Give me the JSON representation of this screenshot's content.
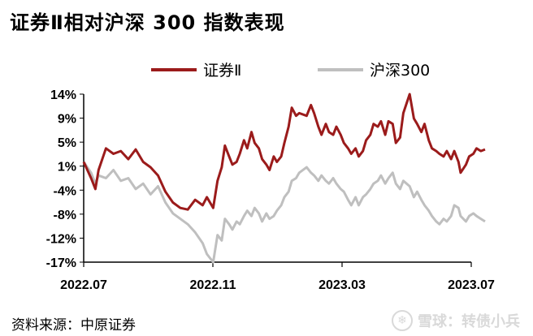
{
  "title": "证券Ⅱ相对沪深 300 指数表现",
  "source_text": "资料来源：中原证券",
  "watermark": {
    "icon": "snowball-logo-icon",
    "text": "雪球：转债小兵"
  },
  "chart_data": {
    "type": "line",
    "title": "证券Ⅱ相对沪深 300 指数表现",
    "xlabel": "",
    "ylabel": "",
    "x_ticks": [
      "2022.07",
      "2022.11",
      "2023.03",
      "2023.07"
    ],
    "y_ticks": [
      "14%",
      "9%",
      "5%",
      "1%",
      "-4%",
      "-8%",
      "-12%",
      "-17%"
    ],
    "ylim": [
      -17,
      14
    ],
    "xlim": [
      "2022-07",
      "2023-07"
    ],
    "grid": false,
    "legend_position": "top",
    "series": [
      {
        "name": "证券Ⅱ",
        "color": "#9b1b1b",
        "points": [
          [
            "2022-07-01",
            1.5
          ],
          [
            "2022-07-08",
            -1.5
          ],
          [
            "2022-07-12",
            -3.5
          ],
          [
            "2022-07-15",
            0.0
          ],
          [
            "2022-07-22",
            4.0
          ],
          [
            "2022-07-29",
            3.0
          ],
          [
            "2022-08-05",
            3.5
          ],
          [
            "2022-08-12",
            2.0
          ],
          [
            "2022-08-19",
            3.8
          ],
          [
            "2022-08-26",
            1.5
          ],
          [
            "2022-09-02",
            0.5
          ],
          [
            "2022-09-09",
            -1.0
          ],
          [
            "2022-09-16",
            -4.0
          ],
          [
            "2022-09-23",
            -6.0
          ],
          [
            "2022-09-30",
            -7.0
          ],
          [
            "2022-10-07",
            -7.3
          ],
          [
            "2022-10-14",
            -5.5
          ],
          [
            "2022-10-21",
            -6.5
          ],
          [
            "2022-10-25",
            -5.0
          ],
          [
            "2022-10-31",
            -7.0
          ],
          [
            "2022-11-04",
            -2.0
          ],
          [
            "2022-11-08",
            0.5
          ],
          [
            "2022-11-11",
            4.5
          ],
          [
            "2022-11-15",
            2.5
          ],
          [
            "2022-11-18",
            1.0
          ],
          [
            "2022-11-22",
            1.5
          ],
          [
            "2022-11-25",
            3.0
          ],
          [
            "2022-11-29",
            5.5
          ],
          [
            "2022-12-02",
            4.0
          ],
          [
            "2022-12-06",
            7.0
          ],
          [
            "2022-12-09",
            5.0
          ],
          [
            "2022-12-13",
            4.0
          ],
          [
            "2022-12-16",
            2.0
          ],
          [
            "2022-12-20",
            1.0
          ],
          [
            "2022-12-23",
            0.0
          ],
          [
            "2022-12-27",
            2.5
          ],
          [
            "2022-12-30",
            1.5
          ],
          [
            "2023-01-03",
            2.5
          ],
          [
            "2023-01-06",
            5.0
          ],
          [
            "2023-01-10",
            8.0
          ],
          [
            "2023-01-13",
            11.5
          ],
          [
            "2023-01-17",
            10.0
          ],
          [
            "2023-01-20",
            10.5
          ],
          [
            "2023-01-27",
            10.0
          ],
          [
            "2023-01-31",
            12.0
          ],
          [
            "2023-02-03",
            10.5
          ],
          [
            "2023-02-07",
            8.0
          ],
          [
            "2023-02-10",
            6.5
          ],
          [
            "2023-02-14",
            8.5
          ],
          [
            "2023-02-17",
            7.0
          ],
          [
            "2023-02-21",
            6.5
          ],
          [
            "2023-02-24",
            8.0
          ],
          [
            "2023-02-28",
            6.5
          ],
          [
            "2023-03-03",
            5.0
          ],
          [
            "2023-03-07",
            4.0
          ],
          [
            "2023-03-10",
            3.0
          ],
          [
            "2023-03-14",
            4.0
          ],
          [
            "2023-03-17",
            2.5
          ],
          [
            "2023-03-21",
            3.5
          ],
          [
            "2023-03-24",
            5.5
          ],
          [
            "2023-03-28",
            6.5
          ],
          [
            "2023-03-31",
            8.5
          ],
          [
            "2023-04-04",
            8.0
          ],
          [
            "2023-04-07",
            9.0
          ],
          [
            "2023-04-11",
            6.5
          ],
          [
            "2023-04-14",
            9.0
          ],
          [
            "2023-04-18",
            8.5
          ],
          [
            "2023-04-21",
            5.0
          ],
          [
            "2023-04-25",
            6.0
          ],
          [
            "2023-04-28",
            10.5
          ],
          [
            "2023-05-04",
            14.0
          ],
          [
            "2023-05-08",
            9.5
          ],
          [
            "2023-05-11",
            8.5
          ],
          [
            "2023-05-15",
            7.0
          ],
          [
            "2023-05-18",
            8.5
          ],
          [
            "2023-05-22",
            5.5
          ],
          [
            "2023-05-25",
            4.0
          ],
          [
            "2023-05-29",
            3.5
          ],
          [
            "2023-06-01",
            3.0
          ],
          [
            "2023-06-05",
            2.5
          ],
          [
            "2023-06-08",
            3.5
          ],
          [
            "2023-06-12",
            2.0
          ],
          [
            "2023-06-15",
            3.5
          ],
          [
            "2023-06-19",
            1.5
          ],
          [
            "2023-06-21",
            -0.5
          ],
          [
            "2023-06-26",
            1.0
          ],
          [
            "2023-06-29",
            2.5
          ],
          [
            "2023-07-03",
            3.0
          ],
          [
            "2023-07-06",
            4.0
          ],
          [
            "2023-07-10",
            3.5
          ],
          [
            "2023-07-14",
            3.8
          ]
        ]
      },
      {
        "name": "沪深300",
        "color": "#bfbfbf",
        "points": [
          [
            "2022-07-01",
            1.5
          ],
          [
            "2022-07-08",
            -0.5
          ],
          [
            "2022-07-12",
            -2.5
          ],
          [
            "2022-07-15",
            -1.0
          ],
          [
            "2022-07-22",
            -1.5
          ],
          [
            "2022-07-29",
            0.0
          ],
          [
            "2022-08-05",
            -2.0
          ],
          [
            "2022-08-12",
            -1.5
          ],
          [
            "2022-08-19",
            -3.5
          ],
          [
            "2022-08-26",
            -2.5
          ],
          [
            "2022-09-02",
            -4.5
          ],
          [
            "2022-09-09",
            -3.0
          ],
          [
            "2022-09-16",
            -6.0
          ],
          [
            "2022-09-23",
            -8.0
          ],
          [
            "2022-09-30",
            -9.0
          ],
          [
            "2022-10-07",
            -10.0
          ],
          [
            "2022-10-14",
            -11.5
          ],
          [
            "2022-10-21",
            -13.5
          ],
          [
            "2022-10-25",
            -15.5
          ],
          [
            "2022-10-31",
            -17.0
          ],
          [
            "2022-11-04",
            -12.0
          ],
          [
            "2022-11-08",
            -13.0
          ],
          [
            "2022-11-11",
            -9.0
          ],
          [
            "2022-11-15",
            -10.0
          ],
          [
            "2022-11-18",
            -11.0
          ],
          [
            "2022-11-22",
            -9.5
          ],
          [
            "2022-11-25",
            -10.0
          ],
          [
            "2022-11-29",
            -8.5
          ],
          [
            "2022-12-02",
            -7.5
          ],
          [
            "2022-12-06",
            -8.5
          ],
          [
            "2022-12-09",
            -7.0
          ],
          [
            "2022-12-13",
            -8.0
          ],
          [
            "2022-12-16",
            -9.5
          ],
          [
            "2022-12-20",
            -8.0
          ],
          [
            "2022-12-23",
            -9.0
          ],
          [
            "2022-12-27",
            -8.5
          ],
          [
            "2022-12-30",
            -7.5
          ],
          [
            "2023-01-03",
            -6.5
          ],
          [
            "2023-01-06",
            -5.0
          ],
          [
            "2023-01-10",
            -4.0
          ],
          [
            "2023-01-13",
            -2.0
          ],
          [
            "2023-01-17",
            -1.5
          ],
          [
            "2023-01-20",
            -0.5
          ],
          [
            "2023-01-27",
            0.5
          ],
          [
            "2023-01-31",
            -0.5
          ],
          [
            "2023-02-03",
            -1.0
          ],
          [
            "2023-02-07",
            -2.0
          ],
          [
            "2023-02-10",
            -1.0
          ],
          [
            "2023-02-14",
            -2.0
          ],
          [
            "2023-02-17",
            -2.5
          ],
          [
            "2023-02-21",
            -1.5
          ],
          [
            "2023-02-24",
            -2.5
          ],
          [
            "2023-02-28",
            -3.5
          ],
          [
            "2023-03-03",
            -4.0
          ],
          [
            "2023-03-07",
            -5.5
          ],
          [
            "2023-03-10",
            -6.5
          ],
          [
            "2023-03-14",
            -5.0
          ],
          [
            "2023-03-17",
            -6.5
          ],
          [
            "2023-03-21",
            -5.0
          ],
          [
            "2023-03-24",
            -4.5
          ],
          [
            "2023-03-28",
            -3.5
          ],
          [
            "2023-03-31",
            -2.5
          ],
          [
            "2023-04-04",
            -2.0
          ],
          [
            "2023-04-07",
            -1.0
          ],
          [
            "2023-04-11",
            -2.5
          ],
          [
            "2023-04-14",
            -1.5
          ],
          [
            "2023-04-18",
            -0.5
          ],
          [
            "2023-04-21",
            -2.5
          ],
          [
            "2023-04-25",
            -3.5
          ],
          [
            "2023-04-28",
            -2.0
          ],
          [
            "2023-05-04",
            -3.0
          ],
          [
            "2023-05-08",
            -5.0
          ],
          [
            "2023-05-11",
            -4.0
          ],
          [
            "2023-05-15",
            -5.5
          ],
          [
            "2023-05-18",
            -6.5
          ],
          [
            "2023-05-22",
            -7.5
          ],
          [
            "2023-05-25",
            -8.5
          ],
          [
            "2023-05-29",
            -9.5
          ],
          [
            "2023-06-01",
            -10.0
          ],
          [
            "2023-06-05",
            -9.0
          ],
          [
            "2023-06-08",
            -9.5
          ],
          [
            "2023-06-12",
            -8.5
          ],
          [
            "2023-06-15",
            -6.5
          ],
          [
            "2023-06-19",
            -7.0
          ],
          [
            "2023-06-21",
            -8.5
          ],
          [
            "2023-06-26",
            -9.5
          ],
          [
            "2023-06-29",
            -8.5
          ],
          [
            "2023-07-03",
            -8.0
          ],
          [
            "2023-07-06",
            -8.5
          ],
          [
            "2023-07-10",
            -9.0
          ],
          [
            "2023-07-14",
            -9.5
          ]
        ]
      }
    ]
  }
}
